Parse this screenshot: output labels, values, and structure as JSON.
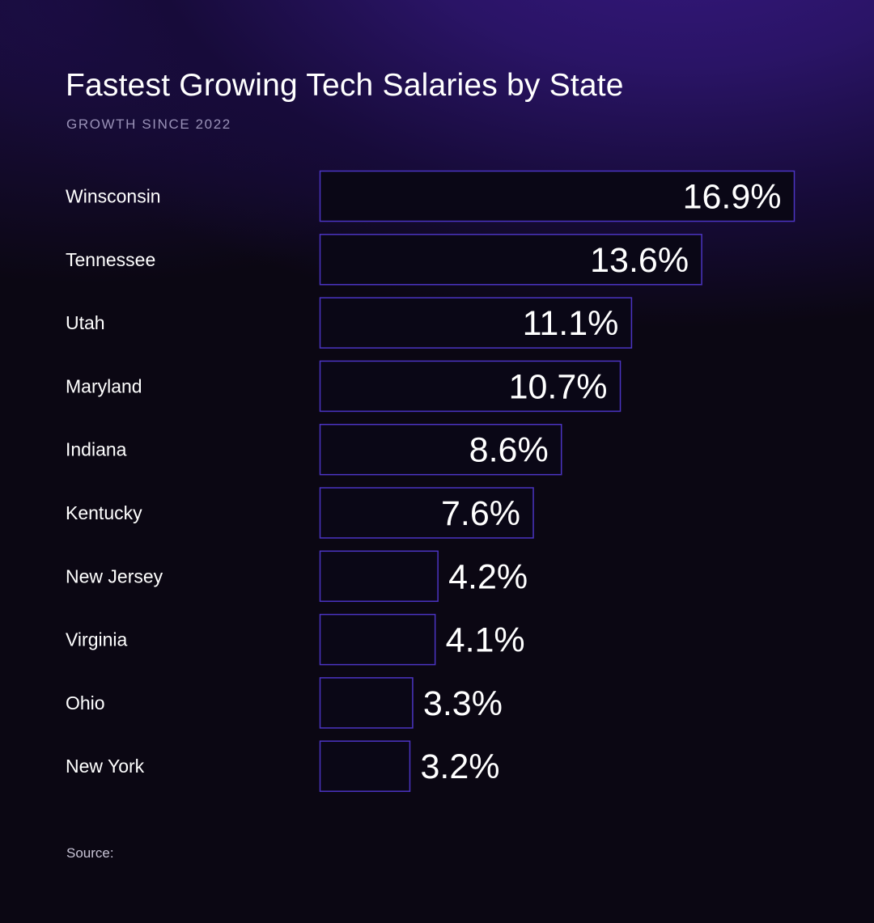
{
  "chart_data": {
    "type": "bar",
    "orientation": "horizontal",
    "title": "Fastest Growing Tech Salaries by State",
    "subtitle": "GROWTH SINCE 2022",
    "source": "Source:",
    "categories": [
      "Winsconsin",
      "Tennessee",
      "Utah",
      "Maryland",
      "Indiana",
      "Kentucky",
      "New Jersey",
      "Virginia",
      "Ohio",
      "New York"
    ],
    "values": [
      16.9,
      13.6,
      11.1,
      10.7,
      8.6,
      7.6,
      4.2,
      4.1,
      3.3,
      3.2
    ],
    "value_labels": [
      "16.9%",
      "13.6%",
      "11.1%",
      "10.7%",
      "8.6%",
      "7.6%",
      "4.2%",
      "4.1%",
      "3.3%",
      "3.2%"
    ],
    "xlabel": "",
    "ylabel": "",
    "grid": false,
    "legend": "none"
  },
  "colors": {
    "bar_outline": "#4b34c2",
    "bar_fill": "#0a0716",
    "text": "#ffffff",
    "subtitle": "#9a92b8"
  }
}
